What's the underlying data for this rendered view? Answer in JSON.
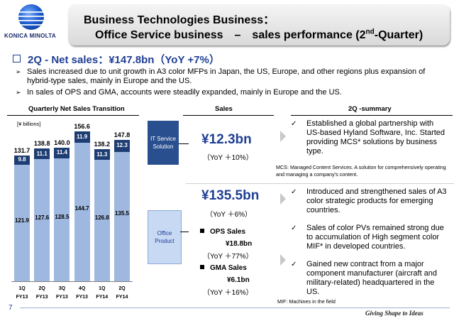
{
  "header": {
    "logo_text": "KONICA MINOLTA",
    "title_line1": "Business Technologies Business：",
    "title_line2_pre": "Office Service business　–　sales performance (2",
    "title_line2_sup": "nd",
    "title_line2_post": "-Quarter)"
  },
  "headline": "2Q - Net sales：¥147.8bn（YoY +7%）",
  "bullets": [
    "Sales increased due to unit growth in A3 color MFPs in Japan, the US, Europe, and other regions plus expansion of hybrid-type sales, mainly in Europe and the US.",
    "In sales of OPS and GMA, accounts were steadily expanded, mainly in Europe and the US."
  ],
  "section_labels": {
    "chart": "Quarterly Net Sales Transition",
    "sales": "Sales",
    "summary": "2Q -summary"
  },
  "chart_data": {
    "type": "bar",
    "stacked": true,
    "title": "Quarterly Net Sales Transition",
    "units": "[¥ billions]",
    "categories": [
      "1Q FY13",
      "2Q FY13",
      "3Q FY13",
      "4Q FY13",
      "1Q FY14",
      "2Q FY14"
    ],
    "x_labels": [
      {
        "q": "1Q",
        "fy": "FY13"
      },
      {
        "q": "2Q",
        "fy": "FY13"
      },
      {
        "q": "3Q",
        "fy": "FY13"
      },
      {
        "q": "4Q",
        "fy": "FY13"
      },
      {
        "q": "1Q",
        "fy": "FY14"
      },
      {
        "q": "2Q",
        "fy": "FY14"
      }
    ],
    "series": [
      {
        "name": "Office Product",
        "values": [
          121.9,
          127.6,
          128.5,
          144.7,
          126.8,
          135.5
        ],
        "labels": [
          "121.9",
          "127.6",
          "128.5",
          "144.7",
          "126.8",
          "135.5"
        ],
        "color": "#9eb8e0"
      },
      {
        "name": "IT Service Solution",
        "values": [
          9.8,
          11.1,
          11.4,
          11.9,
          11.3,
          12.3
        ],
        "labels": [
          "9.8",
          "11.1",
          "11.4",
          "11.9",
          "11.3",
          "12.3"
        ],
        "color": "#1e3d73"
      }
    ],
    "totals": [
      131.7,
      138.8,
      140.0,
      156.6,
      138.2,
      147.8
    ],
    "total_labels": [
      "131.7",
      "138.8",
      "140.0",
      "156.6",
      "138.2",
      "147.8"
    ],
    "ylim": [
      0,
      160
    ]
  },
  "segments": {
    "it": {
      "name": "IT Service Solution",
      "amount": "¥12.3bn",
      "yoy": "（YoY ＋10%）",
      "note": "MCS: Managed Content Services. A solution for comprehensively operating and managing a company's content."
    },
    "office": {
      "name": "Office Product",
      "amount": "¥135.5bn",
      "yoy": "（YoY ＋6%）",
      "ops_label": "OPS Sales",
      "ops_amount": "¥18.8bn",
      "ops_yoy": "（YoY ＋77%）",
      "gma_label": "GMA Sales",
      "gma_amount": "¥6.1bn",
      "gma_yoy": "（YoY ＋16%）",
      "note": "MIF: Machines in the field"
    }
  },
  "summary": [
    "Established a global partnership with US-based Hyland Software, Inc. Started providing MCS* solutions by business type.",
    "Introduced and strengthened sales of A3 color strategic products for emerging countries.",
    "Sales of color PVs remained strong due to accumulation of High segment color MIF* in developed countries.",
    "Gained new contract from a major component manufacturer (aircraft and military-related) headquartered in the US."
  ],
  "footer": {
    "page_number": "7",
    "tagline": "Giving Shape to Ideas"
  },
  "colors": {
    "accent": "#1f3f94",
    "bar_dark": "#1e3d73",
    "bar_light": "#9eb8e0"
  },
  "icons": {
    "bullet": "arrow-bullet-icon",
    "check": "check-icon",
    "square": "square-bullet-icon"
  }
}
